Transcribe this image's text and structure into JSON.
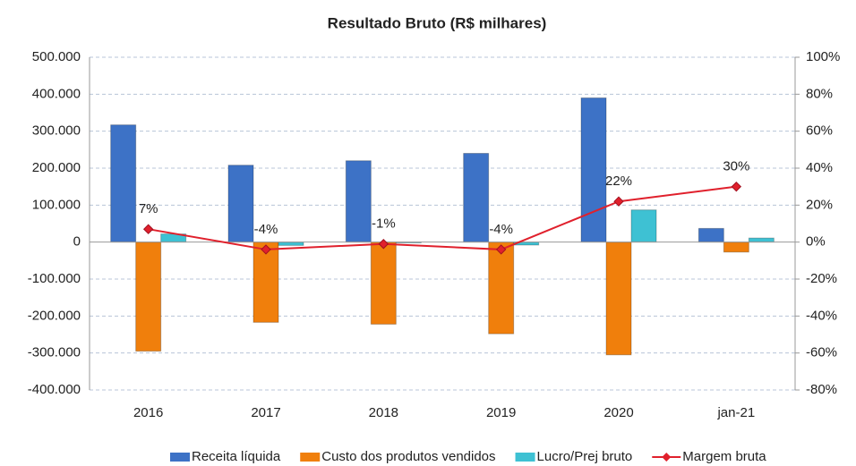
{
  "chart_data": {
    "type": "bar",
    "title": "Resultado Bruto (R$ milhares)",
    "categories": [
      "2016",
      "2017",
      "2018",
      "2019",
      "2020",
      "jan-21"
    ],
    "series": [
      {
        "name": "Receita líquida",
        "color": "#3d72c6",
        "values": [
          317000,
          208000,
          220000,
          240000,
          390000,
          37000
        ]
      },
      {
        "name": "Custo dos produtos vendidos",
        "color": "#f07f0c",
        "values": [
          -295000,
          -217000,
          -222000,
          -248000,
          -305000,
          -27000
        ]
      },
      {
        "name": "Lucro/Prej bruto",
        "color": "#3ec1d3",
        "values": [
          22000,
          -9000,
          -2000,
          -8000,
          87000,
          11000
        ]
      },
      {
        "name": "Margem bruta",
        "color": "#e0202c",
        "type": "line",
        "axis": "y2",
        "values": [
          7,
          -4,
          -1,
          -4,
          22,
          30
        ],
        "value_labels": [
          "7%",
          "-4%",
          "-1%",
          "-4%",
          "22%",
          "30%"
        ]
      }
    ],
    "ylim": [
      -400000,
      500000
    ],
    "yticks": [
      {
        "value": -400000,
        "label": "-400.000"
      },
      {
        "value": -300000,
        "label": "-300.000"
      },
      {
        "value": -200000,
        "label": "-200.000"
      },
      {
        "value": -100000,
        "label": "-100.000"
      },
      0,
      {
        "value": 100000,
        "label": "100.000"
      },
      {
        "value": 200000,
        "label": "200.000"
      },
      {
        "value": 300000,
        "label": "300.000"
      },
      {
        "value": 400000,
        "label": "400.000"
      },
      {
        "value": 500000,
        "label": "500.000"
      }
    ],
    "y2lim": [
      -80,
      100
    ],
    "y2ticks": [
      {
        "value": -80,
        "label": "-80%"
      },
      {
        "value": -60,
        "label": "-60%"
      },
      {
        "value": -40,
        "label": "-40%"
      },
      {
        "value": -20,
        "label": "-20%"
      },
      {
        "value": 0,
        "label": "0%"
      },
      {
        "value": 20,
        "label": "20%"
      },
      {
        "value": 40,
        "label": "40%"
      },
      {
        "value": 60,
        "label": "60%"
      },
      {
        "value": 80,
        "label": "80%"
      },
      {
        "value": 100,
        "label": "100%"
      }
    ],
    "grid": true,
    "legend": "bottom"
  }
}
